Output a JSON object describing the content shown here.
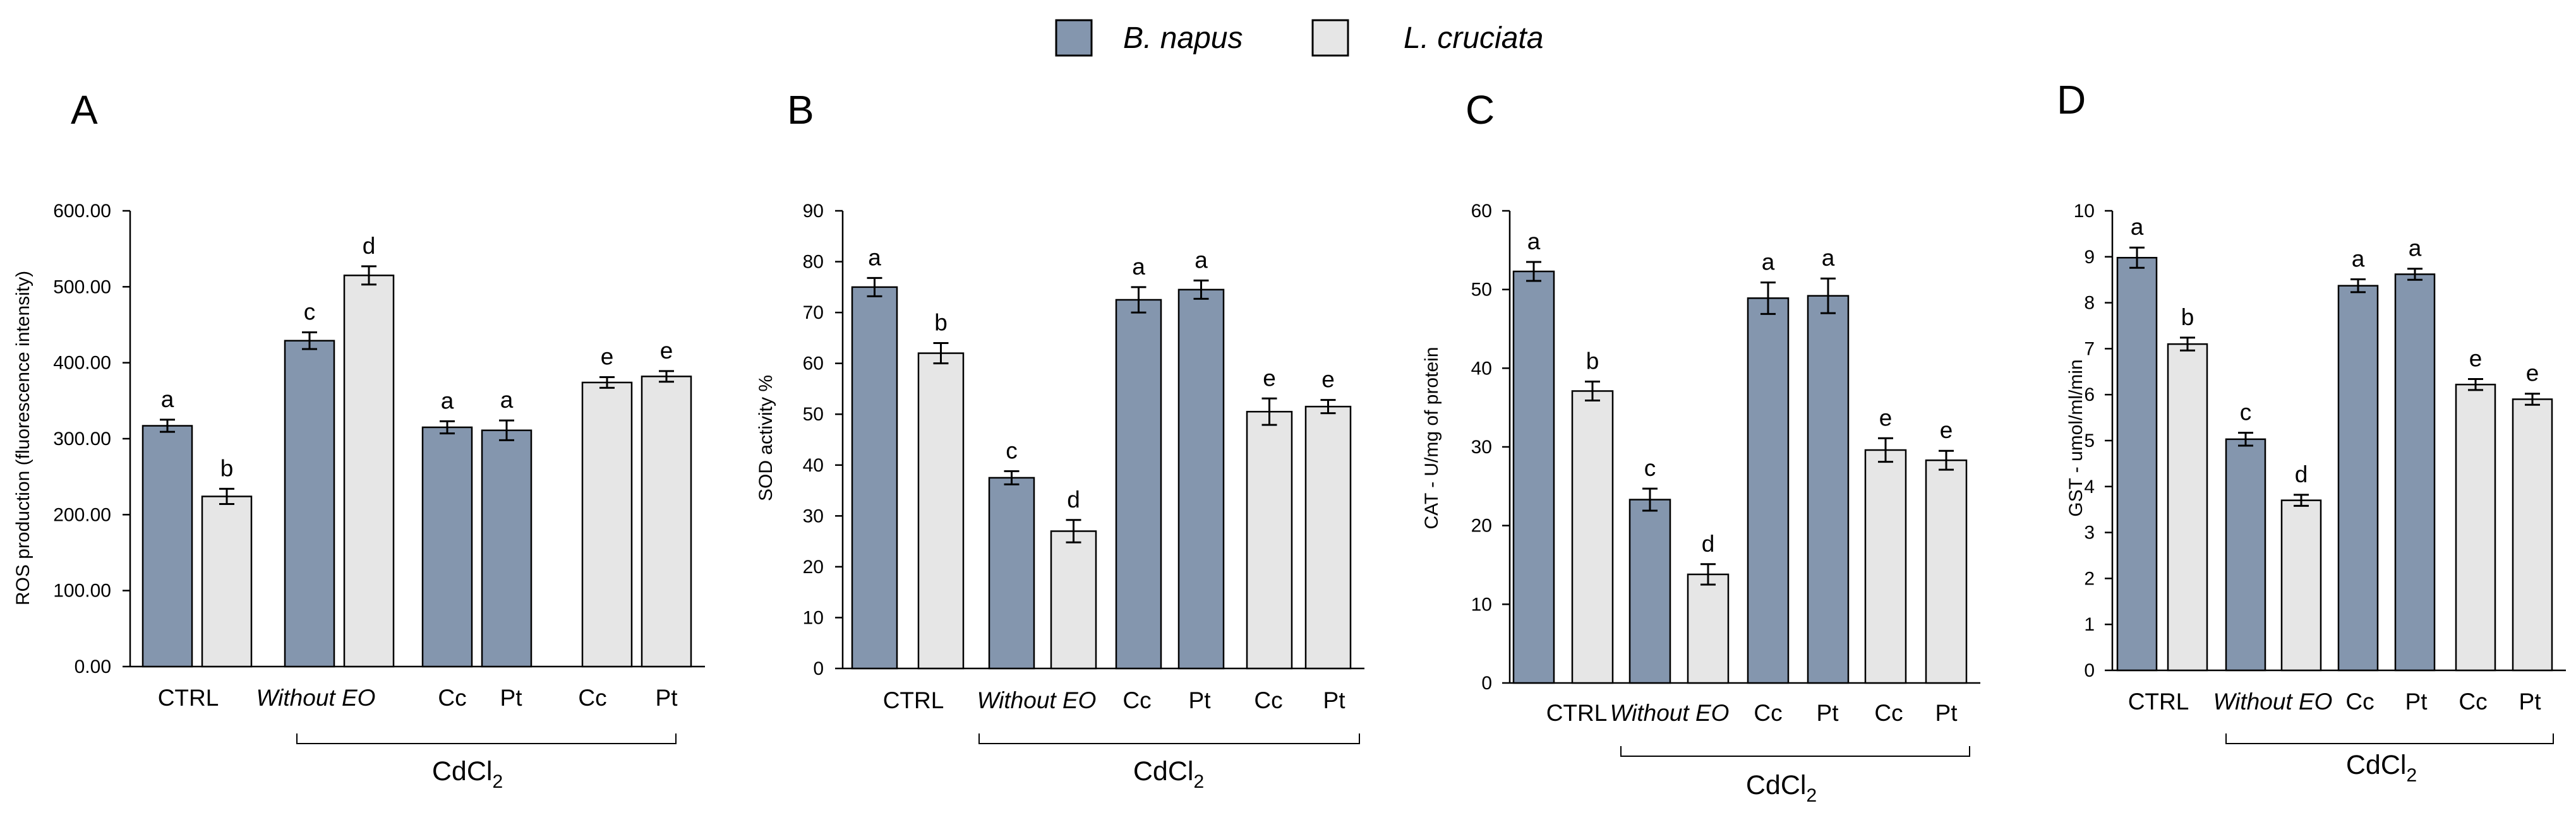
{
  "colors": {
    "b_napus": "#8496ae",
    "l_cruciata": "#e6e6e6"
  },
  "legend": [
    {
      "label": "B. napus",
      "color_key": "b_napus"
    },
    {
      "label": "L. cruciata",
      "color_key": "l_cruciata"
    }
  ],
  "chart_data": [
    {
      "type": "bar",
      "panel": "A",
      "ylabel": "ROS production (fluorescence intensity)",
      "ylim": [
        0,
        600
      ],
      "yticks": [
        "0.00",
        "100.00",
        "200.00",
        "300.00",
        "400.00",
        "500.00",
        "600.00"
      ],
      "categories": [
        "CTRL",
        "Without EO",
        "Cc",
        "Pt",
        "Cc",
        "Pt"
      ],
      "bracket_label": "CdCl",
      "bracket_subscript": "2",
      "bars": [
        {
          "category": "CTRL",
          "series": "B. napus",
          "value": 317,
          "error": 8,
          "label": "a"
        },
        {
          "category": "CTRL",
          "series": "L. cruciata",
          "value": 224,
          "error": 10,
          "label": "b"
        },
        {
          "category": "Without EO",
          "series": "B. napus",
          "value": 429,
          "error": 11,
          "label": "c"
        },
        {
          "category": "Without EO",
          "series": "L. cruciata",
          "value": 515,
          "error": 12,
          "label": "d"
        },
        {
          "category": "Cc",
          "series": "B. napus",
          "value": 315,
          "error": 8,
          "label": "a"
        },
        {
          "category": "Pt",
          "series": "B. napus",
          "value": 311,
          "error": 13,
          "label": "a"
        },
        {
          "category": "Cc",
          "series": "L. cruciata",
          "value": 374,
          "error": 7,
          "label": "e"
        },
        {
          "category": "Pt",
          "series": "L. cruciata",
          "value": 382,
          "error": 7,
          "label": "e"
        }
      ]
    },
    {
      "type": "bar",
      "panel": "B",
      "ylabel": "SOD activity %",
      "ylim": [
        0,
        90
      ],
      "yticks": [
        "0",
        "10",
        "20",
        "30",
        "40",
        "50",
        "60",
        "70",
        "80",
        "90"
      ],
      "categories": [
        "CTRL",
        "Without EO",
        "Cc",
        "Pt",
        "Cc",
        "Pt"
      ],
      "bracket_label": "CdCl",
      "bracket_subscript": "2",
      "bars": [
        {
          "category": "CTRL",
          "series": "B. napus",
          "value": 75,
          "error": 1.8,
          "label": "a"
        },
        {
          "category": "CTRL",
          "series": "L. cruciata",
          "value": 62,
          "error": 2,
          "label": "b"
        },
        {
          "category": "Without EO",
          "series": "B. napus",
          "value": 37.5,
          "error": 1.3,
          "label": "c"
        },
        {
          "category": "Without EO",
          "series": "L. cruciata",
          "value": 27,
          "error": 2.2,
          "label": "d"
        },
        {
          "category": "Cc",
          "series": "B. napus",
          "value": 72.5,
          "error": 2.5,
          "label": "a"
        },
        {
          "category": "Pt",
          "series": "B. napus",
          "value": 74.5,
          "error": 1.8,
          "label": "a"
        },
        {
          "category": "Cc",
          "series": "L. cruciata",
          "value": 50.5,
          "error": 2.6,
          "label": "e"
        },
        {
          "category": "Pt",
          "series": "L. cruciata",
          "value": 51.5,
          "error": 1.3,
          "label": "e"
        }
      ]
    },
    {
      "type": "bar",
      "panel": "C",
      "ylabel": "CAT - U/mg of protein",
      "ylim": [
        0,
        60
      ],
      "yticks": [
        "0",
        "10",
        "20",
        "30",
        "40",
        "50",
        "60"
      ],
      "categories": [
        "CTRL",
        "Without EO",
        "Cc",
        "Pt",
        "Cc",
        "Pt"
      ],
      "bracket_label": "CdCl",
      "bracket_subscript": "2",
      "bars": [
        {
          "category": "CTRL",
          "series": "B. napus",
          "value": 52.3,
          "error": 1.2,
          "label": "a"
        },
        {
          "category": "CTRL",
          "series": "L. cruciata",
          "value": 37.1,
          "error": 1.2,
          "label": "b"
        },
        {
          "category": "Without EO",
          "series": "B. napus",
          "value": 23.3,
          "error": 1.4,
          "label": "c"
        },
        {
          "category": "Without EO",
          "series": "L. cruciata",
          "value": 13.8,
          "error": 1.3,
          "label": "d"
        },
        {
          "category": "Cc",
          "series": "B. napus",
          "value": 48.9,
          "error": 2,
          "label": "a"
        },
        {
          "category": "Pt",
          "series": "B. napus",
          "value": 49.2,
          "error": 2.2,
          "label": "a"
        },
        {
          "category": "Cc",
          "series": "L. cruciata",
          "value": 29.6,
          "error": 1.5,
          "label": "e"
        },
        {
          "category": "Pt",
          "series": "L. cruciata",
          "value": 28.3,
          "error": 1.2,
          "label": "e"
        }
      ]
    },
    {
      "type": "bar",
      "panel": "D",
      "ylabel": "GST - umol/ml/min",
      "ylim": [
        0,
        10
      ],
      "yticks": [
        "0",
        "1",
        "2",
        "3",
        "4",
        "5",
        "6",
        "7",
        "8",
        "9",
        "10"
      ],
      "categories": [
        "CTRL",
        "Without EO",
        "Cc",
        "Pt",
        "Cc",
        "Pt"
      ],
      "bracket_label": "CdCl",
      "bracket_subscript": "2",
      "bars": [
        {
          "category": "CTRL",
          "series": "B. napus",
          "value": 8.98,
          "error": 0.22,
          "label": "a"
        },
        {
          "category": "CTRL",
          "series": "L. cruciata",
          "value": 7.1,
          "error": 0.14,
          "label": "b"
        },
        {
          "category": "Without EO",
          "series": "B. napus",
          "value": 5.03,
          "error": 0.14,
          "label": "c"
        },
        {
          "category": "Without EO",
          "series": "L. cruciata",
          "value": 3.7,
          "error": 0.12,
          "label": "d"
        },
        {
          "category": "Cc",
          "series": "B. napus",
          "value": 8.37,
          "error": 0.14,
          "label": "a"
        },
        {
          "category": "Pt",
          "series": "B. napus",
          "value": 8.62,
          "error": 0.12,
          "label": "a"
        },
        {
          "category": "Cc",
          "series": "L. cruciata",
          "value": 6.22,
          "error": 0.12,
          "label": "e"
        },
        {
          "category": "Pt",
          "series": "L. cruciata",
          "value": 5.9,
          "error": 0.12,
          "label": "e"
        }
      ]
    }
  ]
}
